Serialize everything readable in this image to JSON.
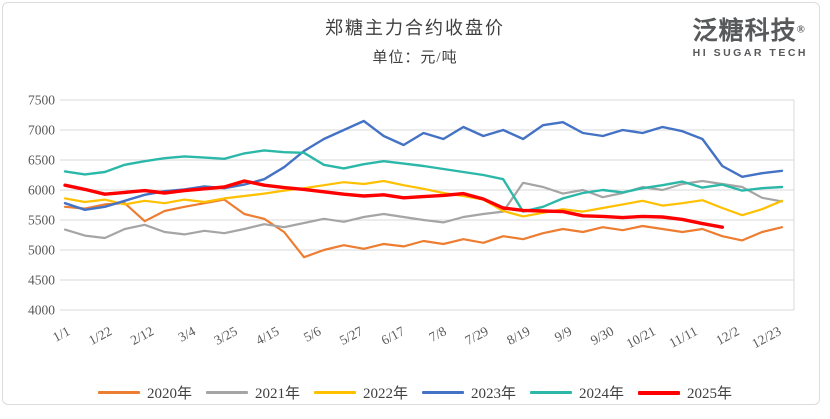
{
  "header": {
    "title": "郑糖主力合约收盘价",
    "subtitle": "单位：元/吨"
  },
  "logo": {
    "name": "泛糖科技",
    "registered": "®",
    "tagline": "HI SUGAR TECH"
  },
  "chart_data": {
    "type": "line",
    "title": "郑糖主力合约收盘价",
    "subtitle": "单位：元/吨",
    "ylabel": "元/吨",
    "ylim": [
      4000,
      7500
    ],
    "y_ticks": [
      7500,
      7000,
      6500,
      6000,
      5500,
      5000,
      4500,
      4000
    ],
    "grid": "horizontal",
    "legend_position": "bottom",
    "x_domain_days": [
      1,
      365
    ],
    "x_ticks": [
      {
        "day": 1,
        "label": "1/1"
      },
      {
        "day": 22,
        "label": "1/22"
      },
      {
        "day": 43,
        "label": "2/12"
      },
      {
        "day": 64,
        "label": "3/4"
      },
      {
        "day": 85,
        "label": "3/25"
      },
      {
        "day": 106,
        "label": "4/15"
      },
      {
        "day": 127,
        "label": "5/6"
      },
      {
        "day": 148,
        "label": "5/27"
      },
      {
        "day": 169,
        "label": "6/17"
      },
      {
        "day": 190,
        "label": "7/8"
      },
      {
        "day": 211,
        "label": "7/29"
      },
      {
        "day": 232,
        "label": "8/19"
      },
      {
        "day": 253,
        "label": "9/9"
      },
      {
        "day": 274,
        "label": "9/30"
      },
      {
        "day": 295,
        "label": "10/21"
      },
      {
        "day": 316,
        "label": "11/11"
      },
      {
        "day": 337,
        "label": "12/2"
      },
      {
        "day": 358,
        "label": "12/23"
      }
    ],
    "x_days": [
      1,
      11,
      21,
      31,
      41,
      51,
      61,
      71,
      81,
      91,
      101,
      111,
      121,
      131,
      141,
      151,
      161,
      171,
      181,
      191,
      201,
      211,
      221,
      231,
      241,
      251,
      261,
      271,
      281,
      291,
      301,
      311,
      321,
      331,
      341,
      351,
      361
    ],
    "series": [
      {
        "name": "2020年",
        "color": "#ED7D31",
        "width": 2.2,
        "values": [
          5720,
          5690,
          5760,
          5780,
          5480,
          5650,
          5720,
          5780,
          5840,
          5600,
          5520,
          5300,
          4880,
          5000,
          5080,
          5020,
          5100,
          5060,
          5150,
          5100,
          5180,
          5120,
          5230,
          5180,
          5280,
          5350,
          5300,
          5380,
          5330,
          5400,
          5350,
          5300,
          5350,
          5230,
          5160,
          5300,
          5380
        ]
      },
      {
        "name": "2021年",
        "color": "#A5A5A5",
        "width": 2.2,
        "values": [
          5340,
          5240,
          5200,
          5350,
          5420,
          5300,
          5260,
          5320,
          5280,
          5350,
          5430,
          5380,
          5450,
          5520,
          5470,
          5550,
          5600,
          5550,
          5500,
          5460,
          5550,
          5600,
          5640,
          6120,
          6050,
          5940,
          6000,
          5880,
          5950,
          6050,
          6000,
          6100,
          6150,
          6100,
          6050,
          5870,
          5810
        ]
      },
      {
        "name": "2022年",
        "color": "#FFC000",
        "width": 2.2,
        "values": [
          5860,
          5800,
          5840,
          5760,
          5820,
          5780,
          5840,
          5800,
          5860,
          5900,
          5940,
          5990,
          6030,
          6080,
          6130,
          6100,
          6150,
          6080,
          6020,
          5950,
          5900,
          5840,
          5650,
          5560,
          5620,
          5680,
          5640,
          5700,
          5760,
          5820,
          5740,
          5780,
          5830,
          5700,
          5580,
          5680,
          5820
        ]
      },
      {
        "name": "2023年",
        "color": "#4472C4",
        "width": 2.4,
        "values": [
          5780,
          5670,
          5720,
          5820,
          5920,
          5980,
          6010,
          6060,
          6030,
          6090,
          6180,
          6380,
          6650,
          6850,
          7000,
          7150,
          6900,
          6750,
          6950,
          6850,
          7050,
          6900,
          7000,
          6850,
          7080,
          7130,
          6950,
          6900,
          7000,
          6950,
          7050,
          6980,
          6850,
          6400,
          6220,
          6280,
          6320
        ]
      },
      {
        "name": "2024年",
        "color": "#2CB8A8",
        "width": 2.4,
        "values": [
          6310,
          6260,
          6300,
          6420,
          6480,
          6530,
          6560,
          6540,
          6520,
          6610,
          6660,
          6630,
          6620,
          6420,
          6360,
          6430,
          6480,
          6440,
          6400,
          6350,
          6300,
          6250,
          6180,
          5640,
          5720,
          5860,
          5950,
          6000,
          5960,
          6030,
          6080,
          6140,
          6040,
          6090,
          5990,
          6030,
          6050
        ]
      },
      {
        "name": "2025年",
        "color": "#FF0000",
        "width": 3.4,
        "values": [
          6080,
          6010,
          5930,
          5960,
          5990,
          5950,
          5990,
          6020,
          6050,
          6150,
          6080,
          6040,
          6010,
          5970,
          5930,
          5900,
          5920,
          5870,
          5890,
          5910,
          5940,
          5850,
          5700,
          5660,
          5650,
          5640,
          5570,
          5560,
          5540,
          5560,
          5550,
          5510,
          5440,
          5380
        ]
      }
    ],
    "style": {
      "background": "#FFFFFF",
      "grid_color": "#D9D9D9",
      "axis_text_color": "#595959",
      "title_color": "#3F3F3F",
      "logo_color": "#58595B"
    }
  }
}
